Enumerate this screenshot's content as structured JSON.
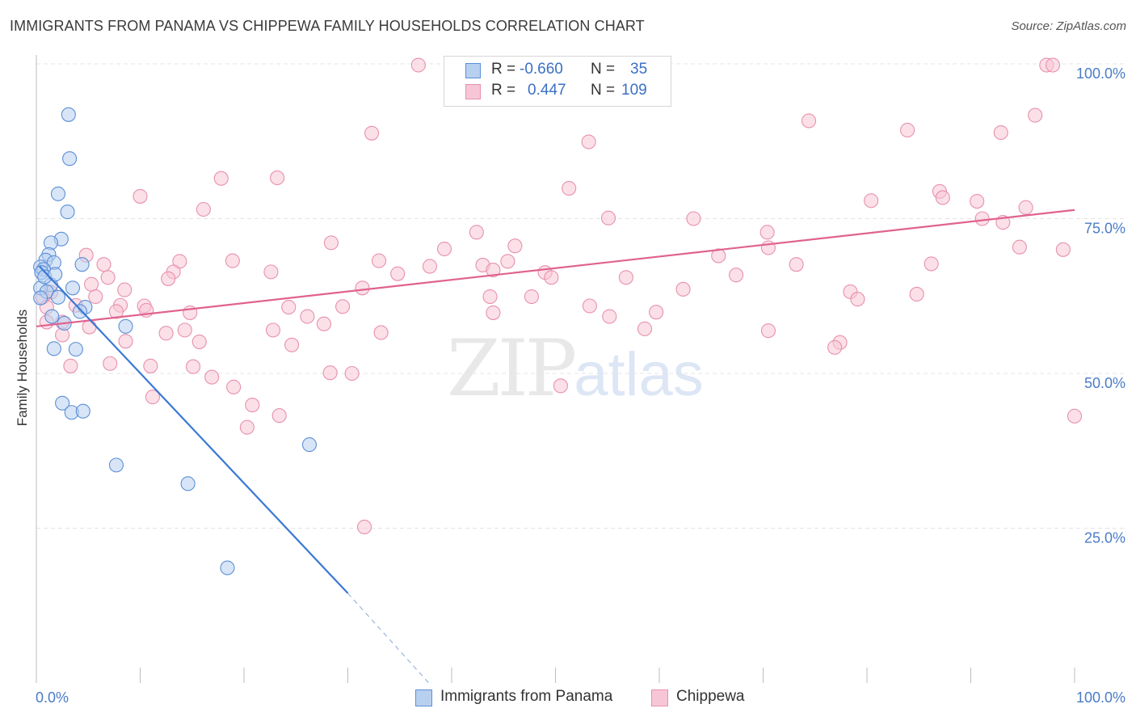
{
  "title": "IMMIGRANTS FROM PANAMA VS CHIPPEWA FAMILY HOUSEHOLDS CORRELATION CHART",
  "source": "Source: ZipAtlas.com",
  "watermark": {
    "part1": "ZIP",
    "part2": "atlas"
  },
  "legend": {
    "rows": [
      {
        "r_label": "R = ",
        "r_value": "-0.660",
        "n_label": "N = ",
        "n_value": "35"
      },
      {
        "r_label": "R = ",
        "r_value": "0.447",
        "n_label": "N = ",
        "n_value": "109"
      }
    ]
  },
  "bottom_legend": [
    "Immigrants from Panama",
    "Chippewa"
  ],
  "colors": {
    "blue_fill": "#b8d0f0",
    "blue_stroke": "#5b8fd6",
    "blue_line": "#3a78d4",
    "pink_fill": "#f7c6d6",
    "pink_stroke": "#e890ad",
    "pink_line": "#e0628f",
    "grid": "#e4e4e4",
    "tick_text": "#4a7cc7"
  },
  "chart_data": {
    "type": "scatter",
    "title": "IMMIGRANTS FROM PANAMA VS CHIPPEWA FAMILY HOUSEHOLDS CORRELATION CHART",
    "xlabel": "",
    "ylabel": "Family Households",
    "xlim": [
      0,
      100
    ],
    "ylim": [
      0,
      100
    ],
    "x_tick_labels": [
      "0.0%",
      "100.0%"
    ],
    "y_tick_labels": [
      "25.0%",
      "50.0%",
      "75.0%",
      "100.0%"
    ],
    "y_ticks": [
      25,
      50,
      75,
      100
    ],
    "grid": true,
    "series": [
      {
        "name": "Immigrants from Panama",
        "r": -0.66,
        "n": 35,
        "trend": {
          "x0": 0.3,
          "y0": 67.3,
          "x1": 30.0,
          "y1": 14.5,
          "dash_to_x": 37.8,
          "dash_to_y": 0
        },
        "points": [
          [
            3.1,
            91.8
          ],
          [
            3.2,
            84.7
          ],
          [
            2.1,
            79.0
          ],
          [
            3.0,
            76.1
          ],
          [
            2.4,
            71.7
          ],
          [
            1.4,
            71.1
          ],
          [
            1.2,
            69.2
          ],
          [
            0.9,
            68.3
          ],
          [
            1.7,
            67.9
          ],
          [
            4.4,
            67.6
          ],
          [
            0.4,
            67.2
          ],
          [
            0.7,
            66.8
          ],
          [
            0.5,
            66.3
          ],
          [
            1.4,
            64.3
          ],
          [
            0.4,
            63.8
          ],
          [
            3.5,
            63.8
          ],
          [
            1.0,
            63.2
          ],
          [
            2.1,
            62.3
          ],
          [
            0.4,
            62.2
          ],
          [
            4.7,
            60.7
          ],
          [
            4.2,
            60.0
          ],
          [
            1.5,
            59.2
          ],
          [
            2.7,
            58.1
          ],
          [
            8.6,
            57.6
          ],
          [
            1.7,
            54.0
          ],
          [
            3.8,
            53.9
          ],
          [
            2.5,
            45.2
          ],
          [
            3.4,
            43.7
          ],
          [
            4.5,
            43.9
          ],
          [
            26.3,
            38.5
          ],
          [
            7.7,
            35.2
          ],
          [
            14.6,
            32.2
          ],
          [
            18.4,
            18.6
          ],
          [
            0.8,
            65.6
          ],
          [
            1.8,
            66.0
          ]
        ]
      },
      {
        "name": "Chippewa",
        "r": 0.447,
        "n": 109,
        "trend": {
          "x0": 0.0,
          "y0": 57.6,
          "x1": 100.0,
          "y1": 76.4
        },
        "points": [
          [
            36.8,
            99.8
          ],
          [
            97.3,
            99.8
          ],
          [
            97.9,
            99.8
          ],
          [
            96.2,
            91.7
          ],
          [
            74.4,
            90.8
          ],
          [
            83.9,
            89.3
          ],
          [
            92.9,
            88.9
          ],
          [
            32.3,
            88.8
          ],
          [
            53.2,
            87.4
          ],
          [
            17.8,
            81.5
          ],
          [
            23.2,
            81.6
          ],
          [
            51.3,
            79.9
          ],
          [
            10.0,
            78.6
          ],
          [
            80.4,
            77.9
          ],
          [
            87.0,
            79.4
          ],
          [
            87.3,
            78.4
          ],
          [
            90.6,
            77.8
          ],
          [
            95.3,
            76.8
          ],
          [
            16.1,
            76.5
          ],
          [
            55.1,
            75.1
          ],
          [
            63.3,
            75.0
          ],
          [
            91.1,
            75.0
          ],
          [
            93.1,
            74.4
          ],
          [
            42.4,
            72.8
          ],
          [
            70.4,
            72.8
          ],
          [
            28.4,
            71.1
          ],
          [
            46.1,
            70.6
          ],
          [
            39.3,
            70.1
          ],
          [
            70.5,
            70.3
          ],
          [
            94.7,
            70.4
          ],
          [
            98.9,
            70.0
          ],
          [
            4.8,
            69.1
          ],
          [
            65.7,
            69.0
          ],
          [
            13.8,
            68.1
          ],
          [
            18.9,
            68.2
          ],
          [
            33.0,
            68.2
          ],
          [
            45.4,
            68.1
          ],
          [
            6.5,
            67.6
          ],
          [
            37.9,
            67.3
          ],
          [
            43.0,
            67.5
          ],
          [
            73.2,
            67.6
          ],
          [
            86.2,
            67.7
          ],
          [
            13.2,
            66.4
          ],
          [
            22.6,
            66.4
          ],
          [
            34.8,
            66.1
          ],
          [
            44.0,
            66.7
          ],
          [
            49.0,
            66.3
          ],
          [
            49.6,
            65.5
          ],
          [
            56.8,
            65.5
          ],
          [
            67.4,
            65.9
          ],
          [
            6.9,
            65.5
          ],
          [
            12.7,
            65.3
          ],
          [
            5.3,
            64.4
          ],
          [
            31.4,
            63.8
          ],
          [
            62.3,
            63.6
          ],
          [
            78.4,
            63.2
          ],
          [
            84.8,
            62.8
          ],
          [
            8.5,
            63.5
          ],
          [
            1.4,
            63.1
          ],
          [
            0.6,
            62.3
          ],
          [
            5.7,
            62.4
          ],
          [
            43.7,
            62.4
          ],
          [
            47.7,
            62.4
          ],
          [
            79.1,
            62.0
          ],
          [
            3.8,
            61.0
          ],
          [
            8.1,
            61.0
          ],
          [
            10.4,
            60.9
          ],
          [
            24.3,
            60.7
          ],
          [
            29.5,
            60.8
          ],
          [
            53.3,
            60.9
          ],
          [
            1.0,
            60.7
          ],
          [
            7.7,
            60.0
          ],
          [
            10.6,
            60.2
          ],
          [
            14.8,
            59.8
          ],
          [
            44.0,
            59.8
          ],
          [
            59.7,
            59.9
          ],
          [
            26.1,
            59.2
          ],
          [
            55.2,
            59.2
          ],
          [
            1.0,
            58.3
          ],
          [
            2.5,
            58.3
          ],
          [
            27.7,
            58.0
          ],
          [
            5.1,
            57.5
          ],
          [
            14.3,
            57.0
          ],
          [
            22.8,
            57.0
          ],
          [
            2.5,
            56.2
          ],
          [
            12.5,
            56.5
          ],
          [
            33.2,
            56.6
          ],
          [
            58.6,
            57.2
          ],
          [
            70.5,
            56.9
          ],
          [
            8.6,
            55.2
          ],
          [
            15.7,
            55.1
          ],
          [
            24.6,
            54.6
          ],
          [
            77.4,
            55.0
          ],
          [
            76.9,
            54.2
          ],
          [
            7.1,
            51.6
          ],
          [
            3.3,
            51.2
          ],
          [
            11.0,
            51.2
          ],
          [
            15.1,
            51.1
          ],
          [
            16.9,
            49.4
          ],
          [
            28.3,
            50.1
          ],
          [
            30.4,
            50.0
          ],
          [
            19.0,
            47.8
          ],
          [
            50.5,
            48.0
          ],
          [
            11.2,
            46.2
          ],
          [
            20.8,
            44.9
          ],
          [
            23.4,
            43.2
          ],
          [
            20.3,
            41.3
          ],
          [
            100.0,
            43.1
          ],
          [
            31.6,
            25.2
          ]
        ]
      }
    ]
  }
}
